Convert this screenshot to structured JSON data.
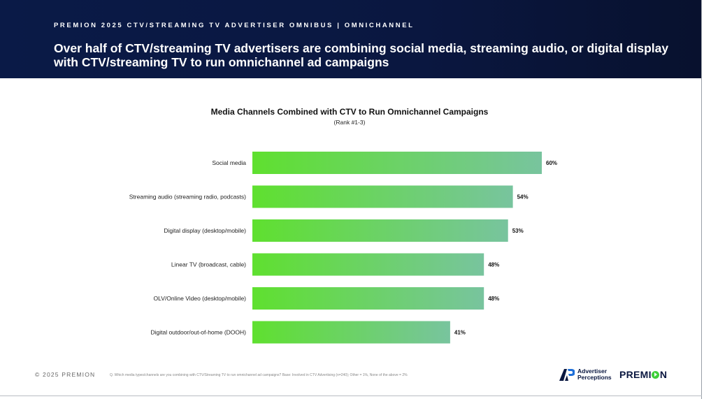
{
  "header": {
    "eyebrow": "PREMION 2025 CTV/STREAMING TV ADVERTISER OMNIBUS | OMNICHANNEL",
    "headline": "Over half of CTV/streaming TV advertisers are combining social media, streaming audio, or digital display with CTV/streaming TV to run omnichannel ad campaigns"
  },
  "chart_data": {
    "type": "bar",
    "orientation": "horizontal",
    "title": "Media Channels Combined with CTV to Run Omnichannel Campaigns",
    "subtitle": "(Rank #1-3)",
    "categories": [
      "Social media",
      "Streaming audio (streaming radio, podcasts)",
      "Digital display (desktop/mobile)",
      "Linear TV (broadcast, cable)",
      "OLV/Online Video (desktop/mobile)",
      "Digital outdoor/out-of-home (DOOH)"
    ],
    "values": [
      60,
      54,
      53,
      48,
      48,
      41
    ],
    "value_labels": [
      "60%",
      "54%",
      "53%",
      "48%",
      "48%",
      "41%"
    ],
    "unit": "%",
    "xlim": [
      0,
      100
    ],
    "grid": false,
    "legend": "none",
    "colors": {
      "bar_start": "#5fe02f",
      "bar_end": "#78c49e"
    }
  },
  "footer": {
    "copyright": "© 2025 PREMION",
    "footnote": "Q. Which media types/channels are you combining with CTV/Streaming TV to run omnichannel ad campaigns? Base: Involved in CTV Advertising (n=240); Other = 1%, None of the above = 2%",
    "ap_logo": {
      "icon": "ap-logo-icon",
      "line1": "Advertiser",
      "line2": "Perceptions"
    },
    "premion_logo": {
      "icon": "premion-logo-icon",
      "before_o": "PREMI",
      "after_o": "N"
    }
  },
  "colors": {
    "header_bg": "#0a1740",
    "accent_green": "#3fcf3a"
  }
}
